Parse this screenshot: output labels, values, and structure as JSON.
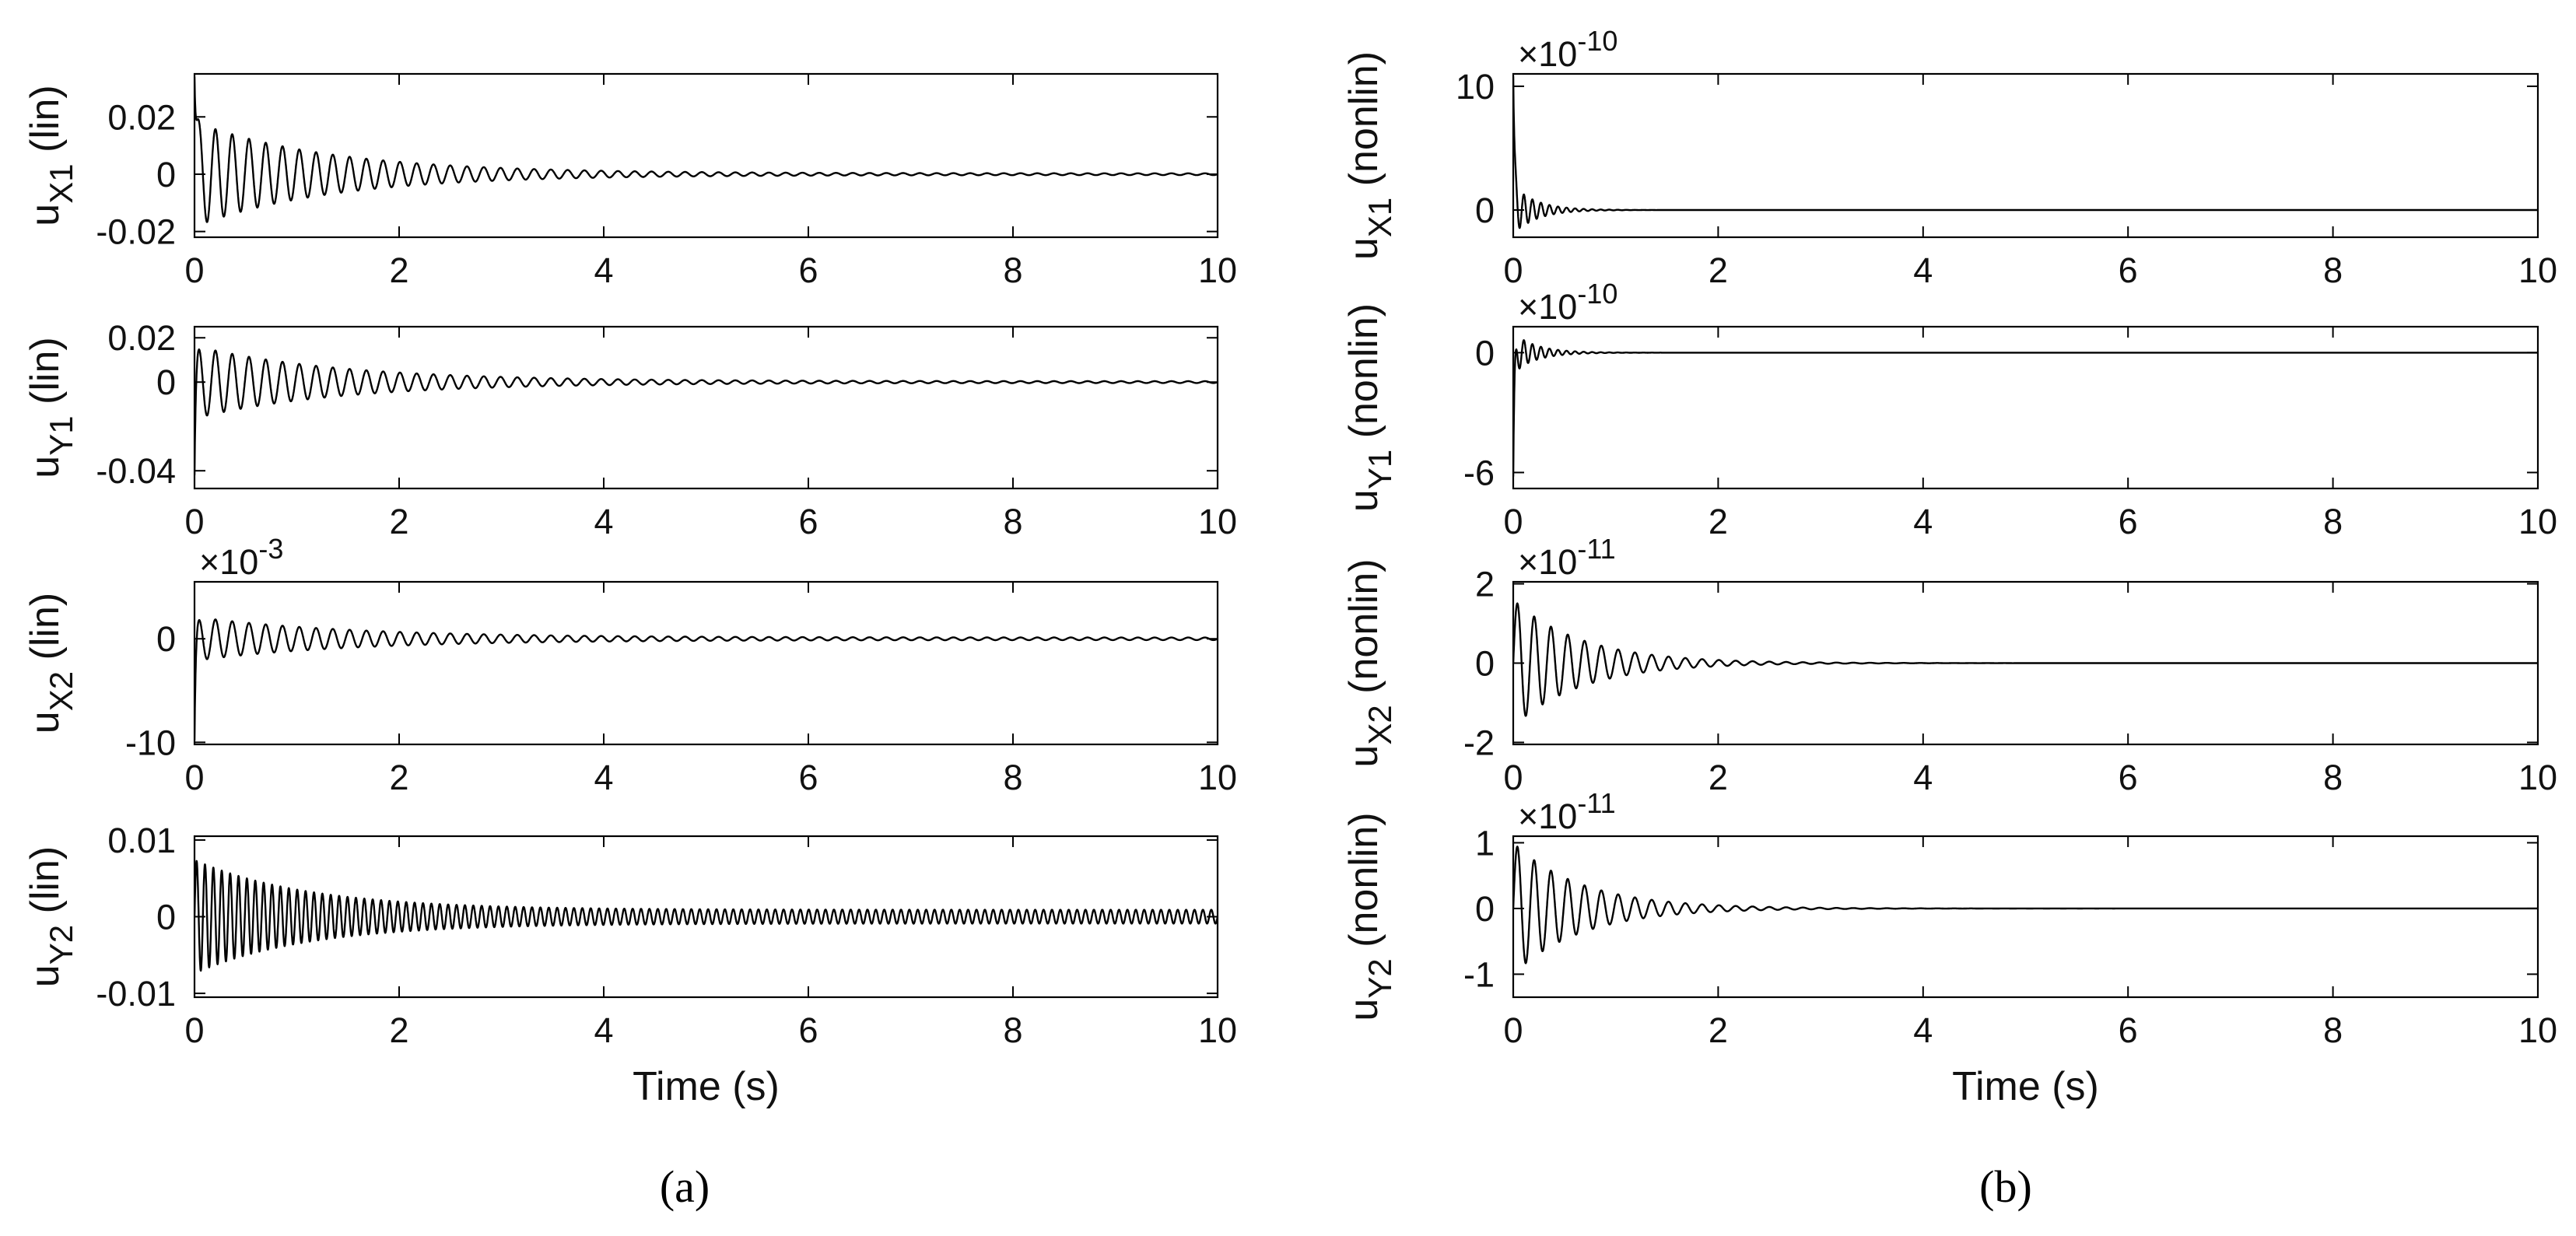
{
  "chart_data": [
    {
      "type": "line",
      "panel": "a",
      "ylabel_main": "u",
      "ylabel_sub": "X1",
      "ylabel_suffix": " (lin)",
      "exponent_label": "",
      "xlim": [
        0,
        10
      ],
      "ylim": [
        -0.022,
        0.035
      ],
      "xticks": [
        0,
        2,
        4,
        6,
        8,
        10
      ],
      "yticks": [
        -0.02,
        0,
        0.02
      ],
      "ytick_labels": [
        "-0.02",
        "0",
        "0.02"
      ],
      "xlabel": "",
      "signal": {
        "freq": 6.1,
        "amp": 0.018,
        "decay": 0.75,
        "floor": 0.0003,
        "init": 0.034
      }
    },
    {
      "type": "line",
      "panel": "a",
      "ylabel_main": "u",
      "ylabel_sub": "Y1",
      "ylabel_suffix": " (lin)",
      "exponent_label": "",
      "xlim": [
        0,
        10
      ],
      "ylim": [
        -0.048,
        0.025
      ],
      "xticks": [
        0,
        2,
        4,
        6,
        8,
        10
      ],
      "yticks": [
        -0.04,
        0,
        0.02
      ],
      "ytick_labels": [
        "-0.04",
        "0",
        "0.02"
      ],
      "xlabel": "",
      "signal": {
        "freq": 6.1,
        "amp": 0.016,
        "decay": 0.7,
        "floor": 0.0004,
        "init": -0.042
      }
    },
    {
      "type": "line",
      "panel": "a",
      "ylabel_main": "u",
      "ylabel_sub": "X2",
      "ylabel_suffix": " (lin)",
      "exponent_label": "×10",
      "exponent_power": "-3",
      "xlim": [
        0,
        10
      ],
      "ylim": [
        -10.2,
        5.5
      ],
      "xticks": [
        0,
        2,
        4,
        6,
        8,
        10
      ],
      "yticks": [
        -10,
        0
      ],
      "ytick_labels": [
        "-10",
        "0"
      ],
      "xlabel": "",
      "signal": {
        "freq": 6.1,
        "amp": 2.0,
        "decay": 0.65,
        "floor": 0.12,
        "init": -9.8
      }
    },
    {
      "type": "line",
      "panel": "a",
      "ylabel_main": "u",
      "ylabel_sub": "Y2",
      "ylabel_suffix": " (lin)",
      "exponent_label": "",
      "xlim": [
        0,
        10
      ],
      "ylim": [
        -0.0105,
        0.0105
      ],
      "xticks": [
        0,
        2,
        4,
        6,
        8,
        10
      ],
      "yticks": [
        -0.01,
        0,
        0.01
      ],
      "ytick_labels": [
        "-0.01",
        "0",
        "0.01"
      ],
      "xlabel": "Time (s)",
      "signal": {
        "freq": 12.2,
        "amp": 0.0065,
        "decay": 0.9,
        "floor": 0.0009,
        "init": 0.0
      }
    },
    {
      "type": "line",
      "panel": "b",
      "ylabel_main": "u",
      "ylabel_sub": "X1",
      "ylabel_suffix": " (nonlin)",
      "exponent_label": "×10",
      "exponent_power": "-10",
      "xlim": [
        0,
        10
      ],
      "ylim": [
        -2.2,
        11.0
      ],
      "xticks": [
        0,
        2,
        4,
        6,
        8,
        10
      ],
      "yticks": [
        0,
        10
      ],
      "ytick_labels": [
        "0",
        "10"
      ],
      "xlabel": "",
      "signal": {
        "freq": 12.0,
        "amp": 2.0,
        "decay": 4.5,
        "floor": 0.0,
        "init": 10.8
      }
    },
    {
      "type": "line",
      "panel": "b",
      "ylabel_main": "u",
      "ylabel_sub": "Y1",
      "ylabel_suffix": " (nonlin)",
      "exponent_label": "×10",
      "exponent_power": "-10",
      "xlim": [
        0,
        10
      ],
      "ylim": [
        -6.8,
        1.3
      ],
      "xticks": [
        0,
        2,
        4,
        6,
        8,
        10
      ],
      "yticks": [
        -6,
        0
      ],
      "ytick_labels": [
        "-6",
        "0"
      ],
      "xlabel": "",
      "signal": {
        "freq": 12.0,
        "amp": 1.0,
        "decay": 4.5,
        "floor": 0.0,
        "init": -6.2
      }
    },
    {
      "type": "line",
      "panel": "b",
      "ylabel_main": "u",
      "ylabel_sub": "X2",
      "ylabel_suffix": " (nonlin)",
      "exponent_label": "×10",
      "exponent_power": "-11",
      "xlim": [
        0,
        10
      ],
      "ylim": [
        -2.05,
        2.05
      ],
      "xticks": [
        0,
        2,
        4,
        6,
        8,
        10
      ],
      "yticks": [
        -2,
        0,
        2
      ],
      "ytick_labels": [
        "-2",
        "0",
        "2"
      ],
      "xlabel": "",
      "signal": {
        "freq": 6.1,
        "amp": 1.6,
        "decay": 1.5,
        "floor": 0.0,
        "init": 0.0
      }
    },
    {
      "type": "line",
      "panel": "b",
      "ylabel_main": "u",
      "ylabel_sub": "Y2",
      "ylabel_suffix": " (nonlin)",
      "exponent_label": "×10",
      "exponent_power": "-11",
      "xlim": [
        0,
        10
      ],
      "ylim": [
        -1.35,
        1.1
      ],
      "xticks": [
        0,
        2,
        4,
        6,
        8,
        10
      ],
      "yticks": [
        -1,
        0,
        1
      ],
      "ytick_labels": [
        "-1",
        "0",
        "1"
      ],
      "xlabel": "Time (s)",
      "signal": {
        "freq": 6.1,
        "amp": 1.0,
        "decay": 1.5,
        "floor": 0.0,
        "init": 0.0
      }
    }
  ],
  "panel_labels": {
    "a": "(a)",
    "b": "(b)"
  }
}
